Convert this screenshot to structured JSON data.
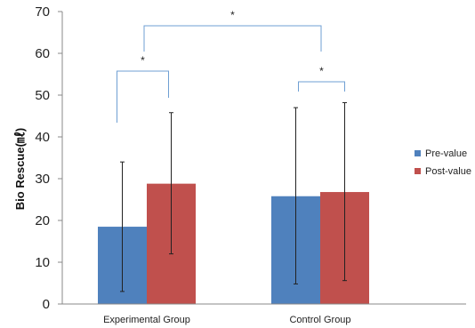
{
  "chart_data": {
    "type": "bar",
    "title": "",
    "xlabel": "",
    "ylabel": "Bio Rescue(㎖)",
    "ylim": [
      0,
      70
    ],
    "yticks": [
      0,
      10,
      20,
      30,
      40,
      50,
      60,
      70
    ],
    "grid": false,
    "legend_position": "right",
    "categories": [
      "Experimental Group",
      "Control Group"
    ],
    "series": [
      {
        "name": "Pre-value",
        "color": "#4F81BD",
        "values": [
          18.5,
          25.8
        ],
        "error_low": [
          3.0,
          4.8
        ],
        "error_high": [
          34.0,
          47.0
        ]
      },
      {
        "name": "Post-value",
        "color": "#C0504D",
        "values": [
          28.8,
          26.8
        ],
        "error_low": [
          12.0,
          5.6
        ],
        "error_high": [
          45.8,
          48.2
        ]
      }
    ],
    "annotations": [
      {
        "text": "*",
        "between": "Experimental Group Pre-value vs Post-value"
      },
      {
        "text": "*",
        "between": "Control Group Pre-value vs Post-value"
      },
      {
        "text": "*",
        "between": "Experimental Group vs Control Group"
      }
    ]
  }
}
